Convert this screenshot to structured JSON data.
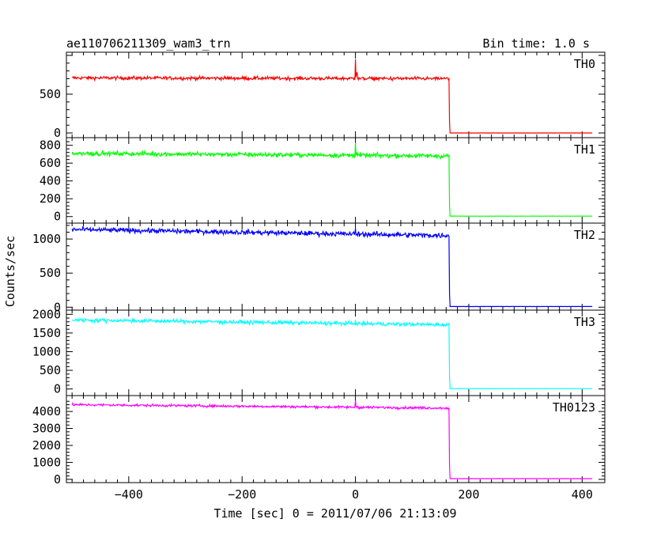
{
  "header": {
    "left": "ae110706211309_wam3_trn",
    "right": "Bin time: 1.0 s"
  },
  "chart_data": {
    "type": "line",
    "title": "ae110706211309_wam3_trn",
    "subtitle": "Bin time: 1.0 s",
    "xlabel": "Time [sec] 0 = 2011/07/06 21:13:09",
    "ylabel": "Counts/sec",
    "xlim": [
      -510,
      440
    ],
    "x_ticks": [
      -400,
      -200,
      0,
      200,
      400
    ],
    "x_tick_labels": [
      "−400",
      "−200",
      "0",
      "200",
      "400"
    ],
    "x_start": -500,
    "x_end": 418,
    "drop_time": 165,
    "grid": false,
    "panels": [
      {
        "name": "TH0",
        "color": "#ff0000",
        "ylim": [
          -20,
          1000
        ],
        "y_ticks": [
          0,
          500
        ],
        "y_tick_labels": [
          "0",
          "500"
        ],
        "level_start": 710,
        "level_end": 700,
        "noise": 22,
        "spike": 950,
        "spike_t": 0,
        "after_drop": 0
      },
      {
        "name": "TH1",
        "color": "#00ff00",
        "ylim": [
          -20,
          850
        ],
        "y_ticks": [
          0,
          200,
          400,
          600,
          800
        ],
        "y_tick_labels": [
          "0",
          "200",
          "400",
          "600",
          "800"
        ],
        "level_start": 710,
        "level_end": 680,
        "noise": 25,
        "spike": 830,
        "spike_t": 0,
        "after_drop": 5
      },
      {
        "name": "TH2",
        "color": "#0000ff",
        "ylim": [
          -20,
          1210
        ],
        "y_ticks": [
          0,
          500,
          1000
        ],
        "y_tick_labels": [
          "0",
          "500",
          "1000"
        ],
        "level_start": 1140,
        "level_end": 1050,
        "noise": 35,
        "spike": 1150,
        "spike_t": 0,
        "after_drop": 10
      },
      {
        "name": "TH3",
        "color": "#00ffff",
        "ylim": [
          -50,
          2070
        ],
        "y_ticks": [
          0,
          500,
          1000,
          1500,
          2000
        ],
        "y_tick_labels": [
          "0",
          "500",
          "1000",
          "1500",
          "2000"
        ],
        "level_start": 1850,
        "level_end": 1720,
        "noise": 50,
        "spike": 1850,
        "spike_t": 0,
        "after_drop": 10
      },
      {
        "name": "TH0123",
        "color": "#ff00ff",
        "ylim": [
          -100,
          4750
        ],
        "y_ticks": [
          0,
          1000,
          2000,
          3000,
          4000
        ],
        "y_tick_labels": [
          "0",
          "1000",
          "2000",
          "3000",
          "4000"
        ],
        "level_start": 4400,
        "level_end": 4200,
        "noise": 70,
        "spike": 4650,
        "spike_t": 0,
        "after_drop": 40
      }
    ]
  }
}
